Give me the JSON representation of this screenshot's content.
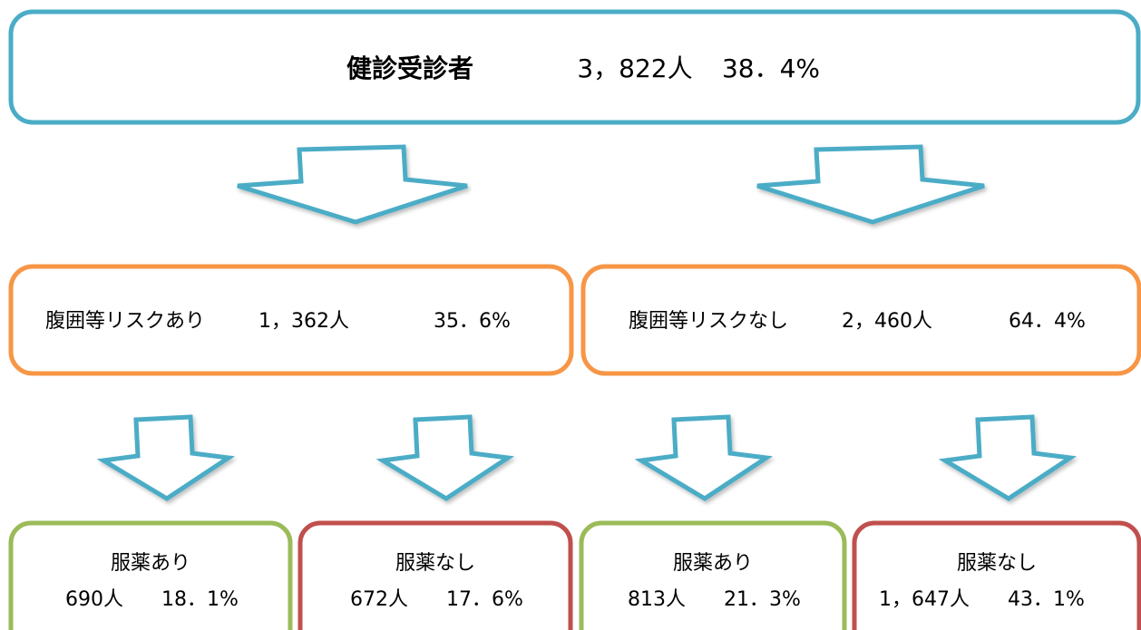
{
  "top": {
    "label": "健診受診者",
    "count": "3，822人",
    "rate": "38．4%"
  },
  "middle": [
    {
      "label": "腹囲等リスクあり",
      "count": "1，362人",
      "rate": "35．6%"
    },
    {
      "label": "腹囲等リスクなし",
      "count": "2，460人",
      "rate": "64．4%"
    }
  ],
  "bottom": [
    {
      "label": "服薬あり",
      "count": "690人",
      "rate": "18．1%"
    },
    {
      "label": "服薬なし",
      "count": "672人",
      "rate": "17．6%"
    },
    {
      "label": "服薬あり",
      "count": "813人",
      "rate": "21．3%"
    },
    {
      "label": "服薬なし",
      "count": "1，647人",
      "rate": "43．1%"
    }
  ]
}
